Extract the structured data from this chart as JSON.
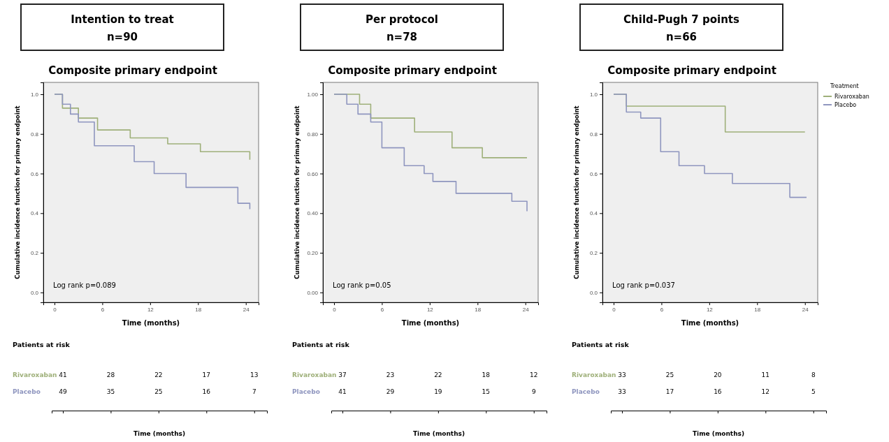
{
  "chart_data": [
    {
      "type": "step",
      "title": "Intention to treat",
      "subtitle": "n=90",
      "xlabel": "Time (months)",
      "ylabel": "Cumulative incidence function for primary endpoint",
      "xlim": [
        -1.4,
        25.6
      ],
      "xticks": [
        0,
        6,
        12,
        18,
        24
      ],
      "ylim": [
        -0.05,
        1.06
      ],
      "yticks": [
        {
          "value": 0,
          "label": "0.0"
        },
        0.2,
        0.4,
        0.6,
        0.8,
        {
          "value": 1,
          "label": "1.0"
        }
      ],
      "series": [
        {
          "name": "Rivaroxaban",
          "color": "#9fb07a",
          "x": [
            0,
            1.0,
            3.0,
            5.4,
            9.5,
            14.2,
            18.3,
            24.5
          ],
          "values": [
            1.0,
            0.93,
            0.88,
            0.82,
            0.78,
            0.75,
            0.71,
            0.67
          ]
        },
        {
          "name": "Placebo",
          "color": "#8f96bf",
          "x": [
            0,
            1.0,
            2.0,
            3.0,
            5.0,
            10.0,
            12.5,
            16.5,
            23.0,
            24.5
          ],
          "values": [
            1.0,
            0.95,
            0.9,
            0.86,
            0.74,
            0.66,
            0.6,
            0.53,
            0.45,
            0.42
          ]
        }
      ],
      "annotations": [
        "Composite primary endpoint",
        "Log rank p=0.089",
        "Patients at risk",
        "41",
        "28",
        "22",
        "17",
        "13",
        "49",
        "35",
        "25",
        "16",
        "7",
        "Time (months)"
      ]
    },
    {
      "type": "step",
      "title": "Per protocol",
      "subtitle": "n=78",
      "xlabel": "Time (months)",
      "ylabel": "Cumulative incidence function for primary endpoint",
      "xlim": [
        -1.4,
        25.6
      ],
      "xticks": [
        0,
        6,
        12,
        18,
        24
      ],
      "ylim": [
        -0.05,
        1.06
      ],
      "yticks": [
        {
          "value": 0,
          "label": "0.00"
        },
        {
          "value": 0.2,
          "label": "0.20"
        },
        {
          "value": 0.4,
          "label": "0.40"
        },
        {
          "value": 0.6,
          "label": "0.60"
        },
        {
          "value": 0.8,
          "label": "0.80"
        },
        {
          "value": 1,
          "label": "1.00"
        }
      ],
      "series": [
        {
          "name": "Rivaroxaban",
          "color": "#9fb07a",
          "x": [
            0,
            3.2,
            4.6,
            10.1,
            14.8,
            18.6,
            24.2
          ],
          "values": [
            1.0,
            0.95,
            0.88,
            0.81,
            0.73,
            0.68,
            0.68
          ]
        },
        {
          "name": "Placebo",
          "color": "#8f96bf",
          "x": [
            0,
            1.6,
            3.0,
            4.6,
            6.0,
            8.8,
            11.3,
            12.4,
            15.3,
            22.3,
            24.2
          ],
          "values": [
            1.0,
            0.95,
            0.9,
            0.86,
            0.73,
            0.64,
            0.6,
            0.56,
            0.5,
            0.46,
            0.41
          ]
        }
      ],
      "annotations": [
        "Composite primary endpoint",
        "Log rank p=0.05",
        "Patients at risk",
        "37",
        "23",
        "22",
        "18",
        "12",
        "41",
        "29",
        "19",
        "15",
        "9",
        "Time (months)"
      ]
    },
    {
      "type": "step",
      "title": "Child-Pugh 7 points",
      "subtitle": "n=66",
      "xlabel": "Time (months)",
      "ylabel": "Cumulative incidence function for primary endpoint",
      "legend": "right",
      "legend_title": "Treatment",
      "xlim": [
        -1.4,
        25.6
      ],
      "xticks": [
        0,
        6,
        12,
        18,
        24
      ],
      "ylim": [
        -0.05,
        1.06
      ],
      "yticks": [
        {
          "value": 0,
          "label": "0.0"
        },
        0.2,
        0.4,
        0.6,
        0.8,
        {
          "value": 1,
          "label": "1.0"
        }
      ],
      "series": [
        {
          "name": "Rivaroxaban",
          "color": "#9fb07a",
          "x": [
            0,
            1.6,
            14.0,
            24.0
          ],
          "values": [
            1.0,
            0.94,
            0.81,
            0.81
          ]
        },
        {
          "name": "Placebo",
          "color": "#8f96bf",
          "x": [
            0,
            1.6,
            3.4,
            5.9,
            8.2,
            11.4,
            14.9,
            22.1,
            24.2
          ],
          "values": [
            1.0,
            0.91,
            0.88,
            0.71,
            0.64,
            0.6,
            0.55,
            0.48,
            0.48
          ]
        }
      ],
      "annotations": [
        "Composite primary endpoint",
        "Log rank p=0.037",
        "Patients at risk",
        "33",
        "25",
        "20",
        "11",
        "8",
        "33",
        "17",
        "16",
        "12",
        "5",
        "Time (months)"
      ]
    }
  ]
}
